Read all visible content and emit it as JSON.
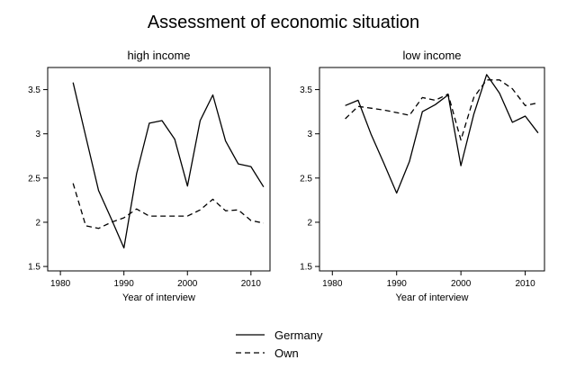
{
  "title": "Assessment of economic situation",
  "legend": [
    {
      "label": "Germany",
      "dash": "solid"
    },
    {
      "label": "Own",
      "dash": "dashed"
    }
  ],
  "chart_data": [
    {
      "type": "line",
      "title": "high income",
      "xlabel": "Year of interview",
      "ylabel": "",
      "xlim": [
        1978,
        2013
      ],
      "ylim": [
        1.45,
        3.75
      ],
      "xticks": [
        1980,
        1990,
        2000,
        2010
      ],
      "yticks": [
        1.5,
        2,
        2.5,
        3,
        3.5
      ],
      "yticklabels": [
        "1.5",
        "2",
        "2.5",
        "3",
        "3.5"
      ],
      "grid": false,
      "series": [
        {
          "name": "Germany",
          "x": [
            1982,
            1984,
            1986,
            1988,
            1990,
            1992,
            1994,
            1996,
            1998,
            2000,
            2002,
            2004,
            2006,
            2008,
            2010,
            2012
          ],
          "y": [
            3.58,
            2.97,
            2.36,
            2.04,
            1.71,
            2.55,
            3.12,
            3.15,
            2.94,
            2.41,
            3.15,
            3.44,
            2.92,
            2.66,
            2.63,
            2.4
          ]
        },
        {
          "name": "Own",
          "x": [
            1982,
            1984,
            1986,
            1988,
            1990,
            1992,
            1994,
            1996,
            1998,
            2000,
            2002,
            2004,
            2006,
            2008,
            2010,
            2012
          ],
          "y": [
            2.44,
            1.96,
            1.93,
            2.0,
            2.05,
            2.15,
            2.07,
            2.07,
            2.07,
            2.07,
            2.14,
            2.26,
            2.13,
            2.14,
            2.02,
            1.99
          ]
        }
      ]
    },
    {
      "type": "line",
      "title": "low income",
      "xlabel": "Year of interview",
      "ylabel": "",
      "xlim": [
        1978,
        2013
      ],
      "ylim": [
        1.45,
        3.75
      ],
      "xticks": [
        1980,
        1990,
        2000,
        2010
      ],
      "yticks": [
        1.5,
        2,
        2.5,
        3,
        3.5
      ],
      "yticklabels": [
        "1.5",
        "2",
        "2.5",
        "3",
        "3.5"
      ],
      "grid": false,
      "series": [
        {
          "name": "Germany",
          "x": [
            1982,
            1984,
            1986,
            1988,
            1990,
            1992,
            1994,
            1996,
            1998,
            2000,
            2002,
            2004,
            2006,
            2008,
            2010,
            2012
          ],
          "y": [
            3.32,
            3.38,
            3.0,
            2.67,
            2.33,
            2.69,
            3.25,
            3.33,
            3.44,
            2.64,
            3.22,
            3.67,
            3.46,
            3.13,
            3.2,
            3.01
          ]
        },
        {
          "name": "Own",
          "x": [
            1982,
            1984,
            1986,
            1988,
            1990,
            1992,
            1994,
            1996,
            1998,
            2000,
            2002,
            2004,
            2006,
            2008,
            2010,
            2012
          ],
          "y": [
            3.17,
            3.31,
            3.29,
            3.27,
            3.24,
            3.21,
            3.41,
            3.38,
            3.45,
            2.93,
            3.41,
            3.61,
            3.61,
            3.51,
            3.32,
            3.35
          ]
        }
      ]
    }
  ]
}
